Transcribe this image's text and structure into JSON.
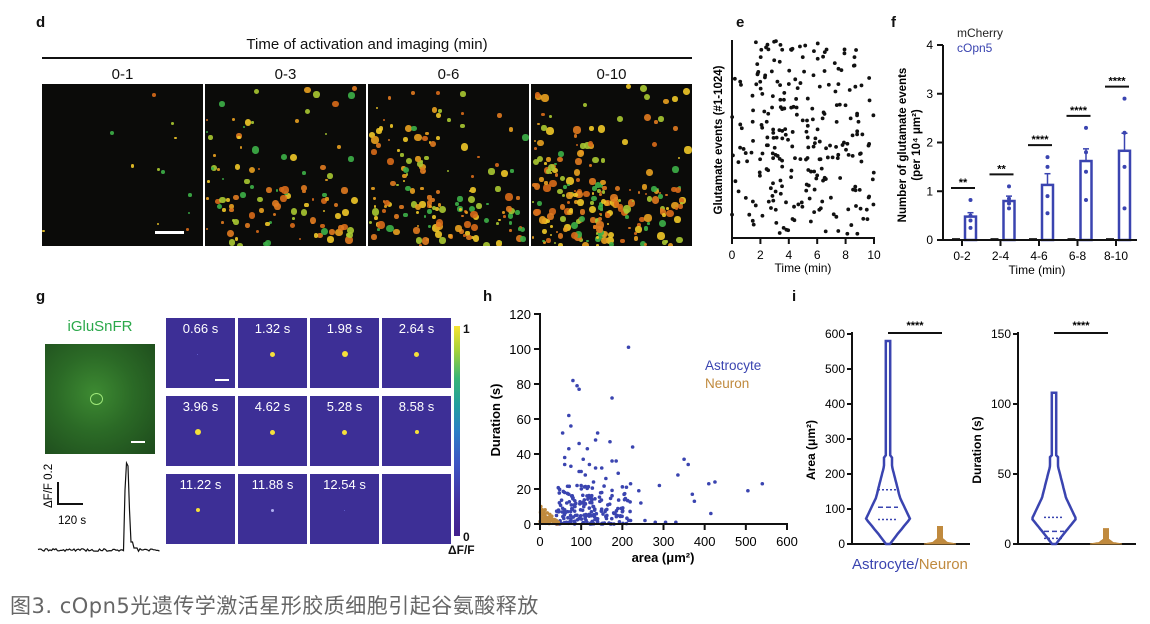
{
  "panels": {
    "d": {
      "label": "d",
      "title": "Time of activation and imaging (min)",
      "subtitles": [
        "0-1",
        "0-3",
        "0-6",
        "0-10"
      ],
      "scale_bar": true
    },
    "e": {
      "label": "e",
      "ylabel": "Glutamate events (#1-1024)",
      "xlabel": "Time (min)",
      "xticks": [
        "0",
        "2",
        "4",
        "6",
        "8",
        "10"
      ]
    },
    "f": {
      "label": "f",
      "ylabel_line1": "Number of glutamate events",
      "ylabel_line2": "(per 10⁴ μm²)",
      "xlabel": "Time (min)",
      "legend": [
        "mCherry",
        "cOpn5"
      ],
      "yticks": [
        "0",
        "1",
        "2",
        "3",
        "4"
      ],
      "significance": [
        "**",
        "**",
        "****",
        "****",
        "****"
      ]
    },
    "g": {
      "label": "g",
      "image_title": "iGluSnFR",
      "tiles": [
        "0.66 s",
        "1.32 s",
        "1.98 s",
        "2.64 s",
        "3.96 s",
        "4.62 s",
        "5.28 s",
        "8.58 s",
        "11.22 s",
        "11.88 s",
        "12.54 s",
        ""
      ],
      "colorbar_max": "1",
      "colorbar_min": "0",
      "colorbar_label": "ΔF/F",
      "trace_scale_y": "ΔF/F 0.2",
      "trace_scale_x": "120 s"
    },
    "h": {
      "label": "h",
      "ylabel": "Duration (s)",
      "xlabel": "area (μm²)",
      "legend": [
        "Astrocyte",
        "Neuron"
      ]
    },
    "i": {
      "label": "i",
      "left_ylabel": "Area (μm²)",
      "right_ylabel": "Duration (s)",
      "left_yticks": [
        "0",
        "100",
        "200",
        "300",
        "400",
        "500",
        "600"
      ],
      "right_yticks": [
        "0",
        "50",
        "100",
        "150"
      ],
      "significance": "****",
      "xlabel_a": "Astrocyte",
      "xlabel_sep": "/",
      "xlabel_b": "Neuron"
    }
  },
  "colors": {
    "astrocyte": "#3a44b0",
    "neuron": "#c08a3e",
    "mcherry": "#222222",
    "copn5": "#3a44b0",
    "iglusnfr_text": "#2aa84a",
    "tile_bg": "#3d2f96"
  },
  "caption": "图3. cOpn5光遗传学激活星形胶质细胞引起谷氨酸释放",
  "chart_data": [
    {
      "id": "e",
      "type": "scatter",
      "title": "",
      "xlabel": "Time (min)",
      "ylabel": "Glutamate events (#1-1024)",
      "xlim": [
        0,
        10
      ],
      "note": "raster of individual glutamate events; random-looking spread, density increasing with time",
      "series": [
        {
          "name": "events",
          "points": "approx. 250 events distributed 0-10 min"
        }
      ]
    },
    {
      "id": "f",
      "type": "bar",
      "xlabel": "Time (min)",
      "ylabel": "Number of glutamate events (per 10⁴ μm²)",
      "ylim": [
        0,
        4
      ],
      "categories": [
        "0-2",
        "2-4",
        "4-6",
        "6-8",
        "8-10"
      ],
      "series": [
        {
          "name": "mCherry",
          "values": [
            0.02,
            0.02,
            0.02,
            0.02,
            0.02
          ],
          "sem": [
            0,
            0,
            0,
            0,
            0
          ]
        },
        {
          "name": "cOpn5",
          "values": [
            0.48,
            0.8,
            1.13,
            1.62,
            1.83
          ],
          "sem": [
            0.08,
            0.1,
            0.23,
            0.25,
            0.36
          ],
          "points": [
            [
              0.25,
              0.4,
              0.5,
              0.82
            ],
            [
              0.65,
              0.75,
              0.85,
              1.1
            ],
            [
              0.55,
              0.9,
              1.5,
              1.7
            ],
            [
              0.82,
              1.4,
              1.8,
              2.3
            ],
            [
              0.65,
              1.5,
              2.2,
              2.9
            ]
          ]
        }
      ],
      "annotations": [
        "**",
        "**",
        "****",
        "****",
        "****"
      ]
    },
    {
      "id": "h",
      "type": "scatter",
      "xlabel": "area (μm²)",
      "ylabel": "Duration (s)",
      "xlim": [
        0,
        600
      ],
      "ylim": [
        0,
        120
      ],
      "legend": "top-right",
      "series": [
        {
          "name": "Astrocyte",
          "points": [
            [
              215,
              101
            ],
            [
              80,
              82
            ],
            [
              90,
              79
            ],
            [
              95,
              77
            ],
            [
              175,
              72
            ],
            [
              70,
              62
            ],
            [
              75,
              56
            ],
            [
              55,
              52
            ],
            [
              140,
              52
            ],
            [
              135,
              48
            ],
            [
              170,
              47
            ],
            [
              95,
              46
            ],
            [
              225,
              44
            ],
            [
              70,
              43
            ],
            [
              115,
              43
            ],
            [
              350,
              37
            ],
            [
              60,
              38
            ],
            [
              105,
              37
            ],
            [
              175,
              36
            ],
            [
              185,
              36
            ],
            [
              360,
              34
            ],
            [
              60,
              34
            ],
            [
              75,
              33
            ],
            [
              120,
              34
            ],
            [
              135,
              32
            ],
            [
              150,
              32
            ],
            [
              95,
              30
            ],
            [
              100,
              30
            ],
            [
              110,
              28
            ],
            [
              190,
              29
            ],
            [
              335,
              28
            ],
            [
              160,
              26
            ],
            [
              130,
              24
            ],
            [
              100,
              22
            ],
            [
              90,
              22
            ],
            [
              290,
              22
            ],
            [
              220,
              23
            ],
            [
              210,
              21
            ],
            [
              410,
              23
            ],
            [
              425,
              24
            ],
            [
              540,
              23
            ],
            [
              505,
              19
            ],
            [
              240,
              19
            ],
            [
              370,
              17
            ],
            [
              375,
              13
            ],
            [
              245,
              12
            ],
            [
              415,
              6
            ],
            [
              60,
              18
            ],
            [
              70,
              17
            ],
            [
              80,
              15
            ],
            [
              120,
              15
            ],
            [
              150,
              18
            ],
            [
              65,
              12
            ],
            [
              85,
              10
            ],
            [
              100,
              12
            ],
            [
              130,
              10
            ],
            [
              160,
              8
            ],
            [
              180,
              6
            ],
            [
              200,
              7
            ],
            [
              220,
              2
            ],
            [
              255,
              2
            ],
            [
              280,
              1
            ],
            [
              305,
              1
            ],
            [
              330,
              1
            ],
            [
              90,
              5
            ],
            [
              110,
              4
            ],
            [
              140,
              3
            ],
            [
              60,
              6
            ],
            [
              75,
              3
            ],
            [
              125,
              7
            ],
            [
              55,
              9
            ],
            [
              45,
              8
            ]
          ]
        },
        {
          "name": "Neuron",
          "points": [
            [
              2,
              10
            ],
            [
              5,
              8
            ],
            [
              8,
              6
            ],
            [
              10,
              5
            ],
            [
              15,
              4
            ],
            [
              20,
              3
            ],
            [
              25,
              2
            ],
            [
              30,
              2
            ],
            [
              35,
              1
            ],
            [
              40,
              1
            ],
            [
              5,
              3
            ],
            [
              12,
              2
            ],
            [
              18,
              1
            ],
            [
              3,
              1
            ],
            [
              8,
              0.5
            ]
          ]
        }
      ]
    },
    {
      "id": "i-area",
      "type": "violin",
      "ylabel": "Area (μm²)",
      "ylim": [
        0,
        600
      ],
      "categories": [
        "Astrocyte",
        "Neuron"
      ],
      "series": [
        {
          "name": "Astrocyte",
          "max": 580,
          "min": 0,
          "median": 105,
          "q1": 70,
          "q3": 155
        },
        {
          "name": "Neuron",
          "max": 50,
          "min": 0,
          "median": 5,
          "q1": 2,
          "q3": 10
        }
      ],
      "annotation": "****"
    },
    {
      "id": "i-duration",
      "type": "violin",
      "ylabel": "Duration (s)",
      "ylim": [
        0,
        150
      ],
      "categories": [
        "Astrocyte",
        "Neuron"
      ],
      "series": [
        {
          "name": "Astrocyte",
          "max": 108,
          "min": 0,
          "median": 9,
          "q1": 4,
          "q3": 19
        },
        {
          "name": "Neuron",
          "max": 11,
          "min": 0,
          "median": 2,
          "q1": 1,
          "q3": 3
        }
      ],
      "annotation": "****"
    }
  ]
}
